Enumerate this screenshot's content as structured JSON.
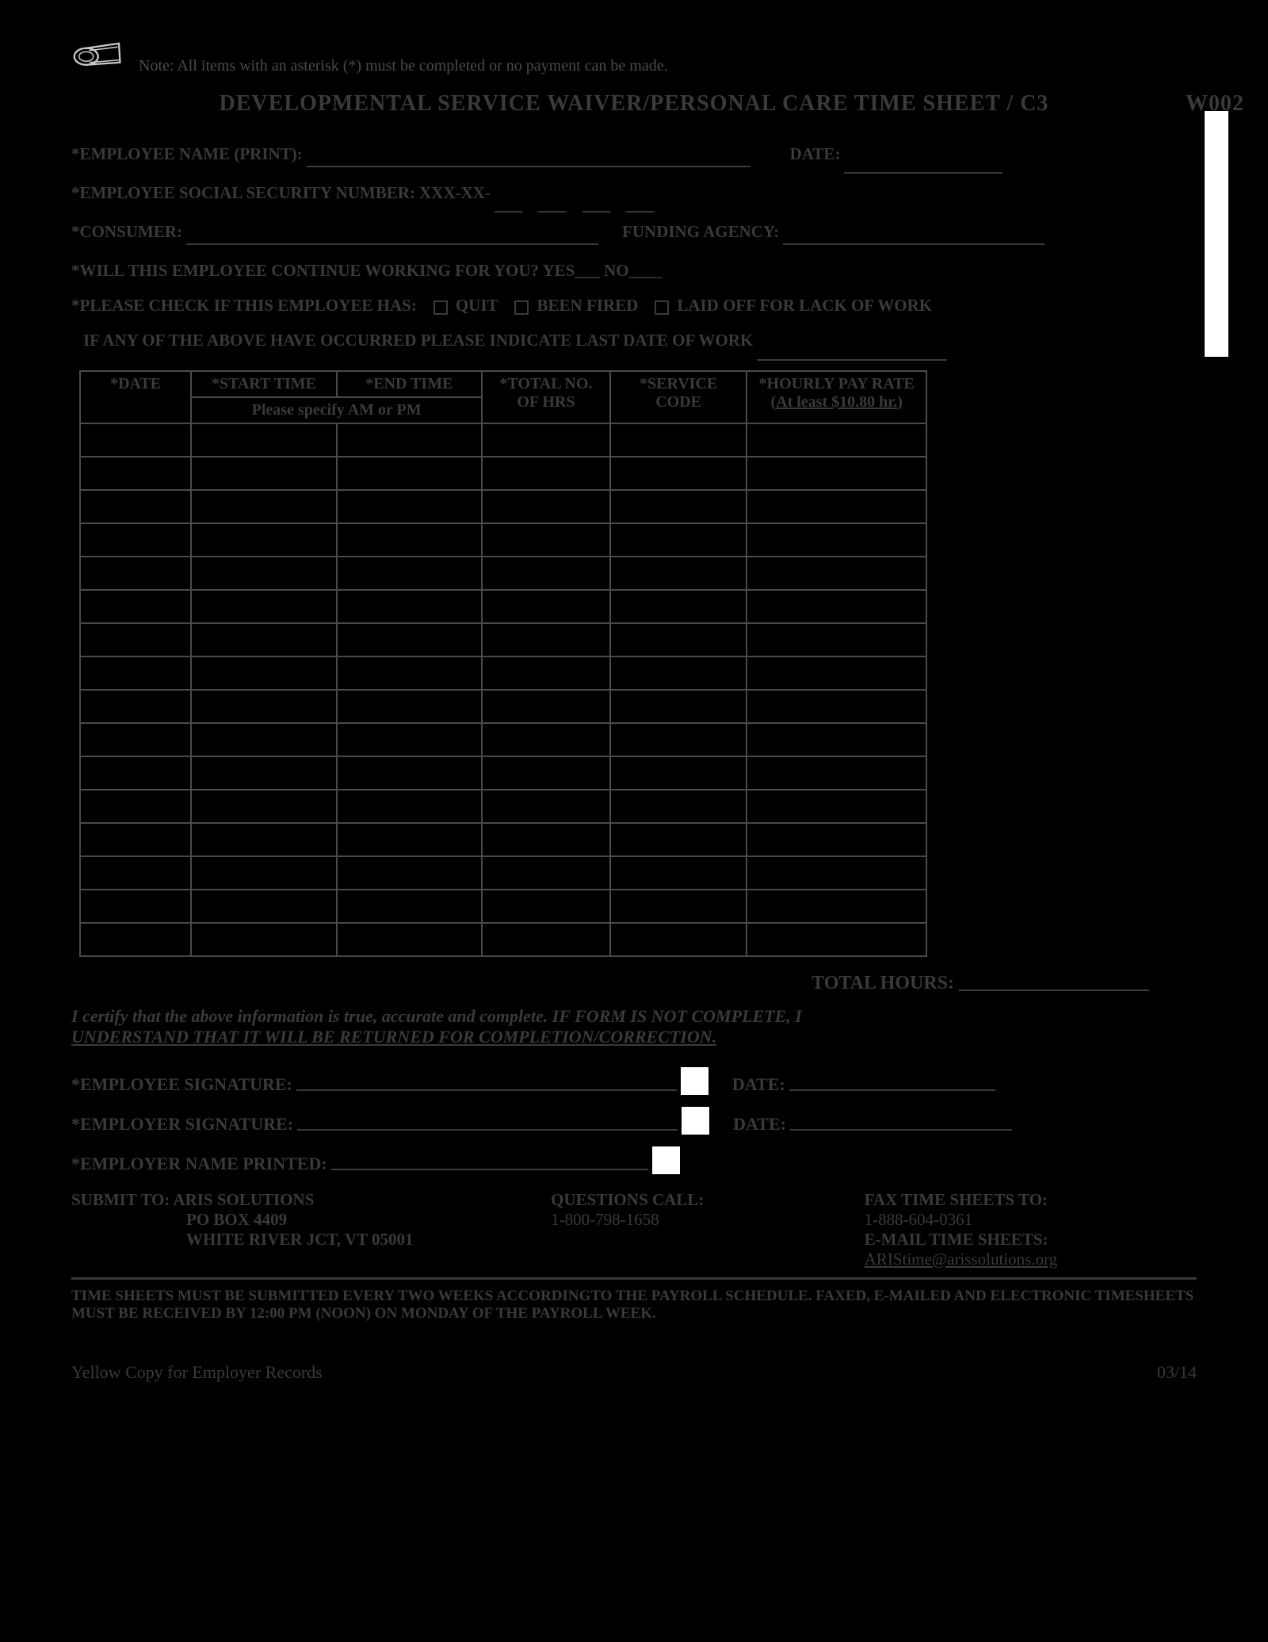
{
  "note": "Note:  All items with an asterisk (*) must be completed or no payment can be made.",
  "title": "DEVELOPMENTAL SERVICE WAIVER/PERSONAL CARE TIME SHEET / C3",
  "form_code": "W002",
  "fields": {
    "employee_name": "*EMPLOYEE NAME (PRINT):",
    "date": "DATE:",
    "ssn": "*EMPLOYEE SOCIAL SECURITY NUMBER:  XXX-XX-",
    "consumer": "*CONSUMER:",
    "funding_agency": "FUNDING AGENCY:",
    "continue_working": "*WILL THIS EMPLOYEE CONTINUE WORKING FOR YOU?  YES___   NO____",
    "check_if": "*PLEASE CHECK IF THIS EMPLOYEE HAS:",
    "quit": "QUIT",
    "been_fired": "BEEN FIRED",
    "laid_off": "LAID OFF FOR LACK OF WORK",
    "last_date": "IF ANY OF THE ABOVE HAVE OCCURRED PLEASE INDICATE LAST DATE OF WORK"
  },
  "table": {
    "h_date": "*DATE",
    "h_start": "*START TIME",
    "h_end": "*END TIME",
    "h_ampm": "Please specify AM or PM",
    "h_total": "*TOTAL NO. OF HRS",
    "h_service": "*SERVICE CODE",
    "h_rate": "*HOURLY PAY RATE",
    "h_rate_sub": "(At least $10.80 hr.)",
    "rows": 16
  },
  "total_hours": "TOTAL HOURS:",
  "cert_1": "I certify that the above information is true, accurate and complete.  IF FORM IS NOT COMPLETE, I",
  "cert_2": "UNDERSTAND THAT IT WILL BE RETURNED FOR COMPLETION/CORRECTION.",
  "sig": {
    "employee": "*EMPLOYEE SIGNATURE:",
    "employer": "*EMPLOYER SIGNATURE:",
    "employer_name": "*EMPLOYER NAME PRINTED:",
    "date": "DATE:"
  },
  "submit": {
    "submit_to": "SUBMIT TO:",
    "addr1": "ARIS SOLUTIONS",
    "addr2": "PO BOX 4409",
    "addr3": "WHITE RIVER JCT, VT 05001",
    "questions": "QUESTIONS CALL:",
    "phone": "1-800-798-1658",
    "fax_label": "FAX TIME SHEETS TO:",
    "fax": "1-888-604-0361",
    "email_label": "E-MAIL TIME SHEETS:",
    "email": "ARIStime@arissolutions.org"
  },
  "footer_note": "TIME SHEETS MUST BE SUBMITTED EVERY TWO WEEKS ACCORDINGTO THE PAYROLL SCHEDULE.   FAXED, E-MAILED AND ELECTRONIC TIMESHEETS MUST BE RECEIVED BY 12:00 PM (NOON) ON MONDAY OF THE PAYROLL WEEK.",
  "bottom_left": "Yellow Copy  for Employer  Records",
  "bottom_right": "03/14"
}
